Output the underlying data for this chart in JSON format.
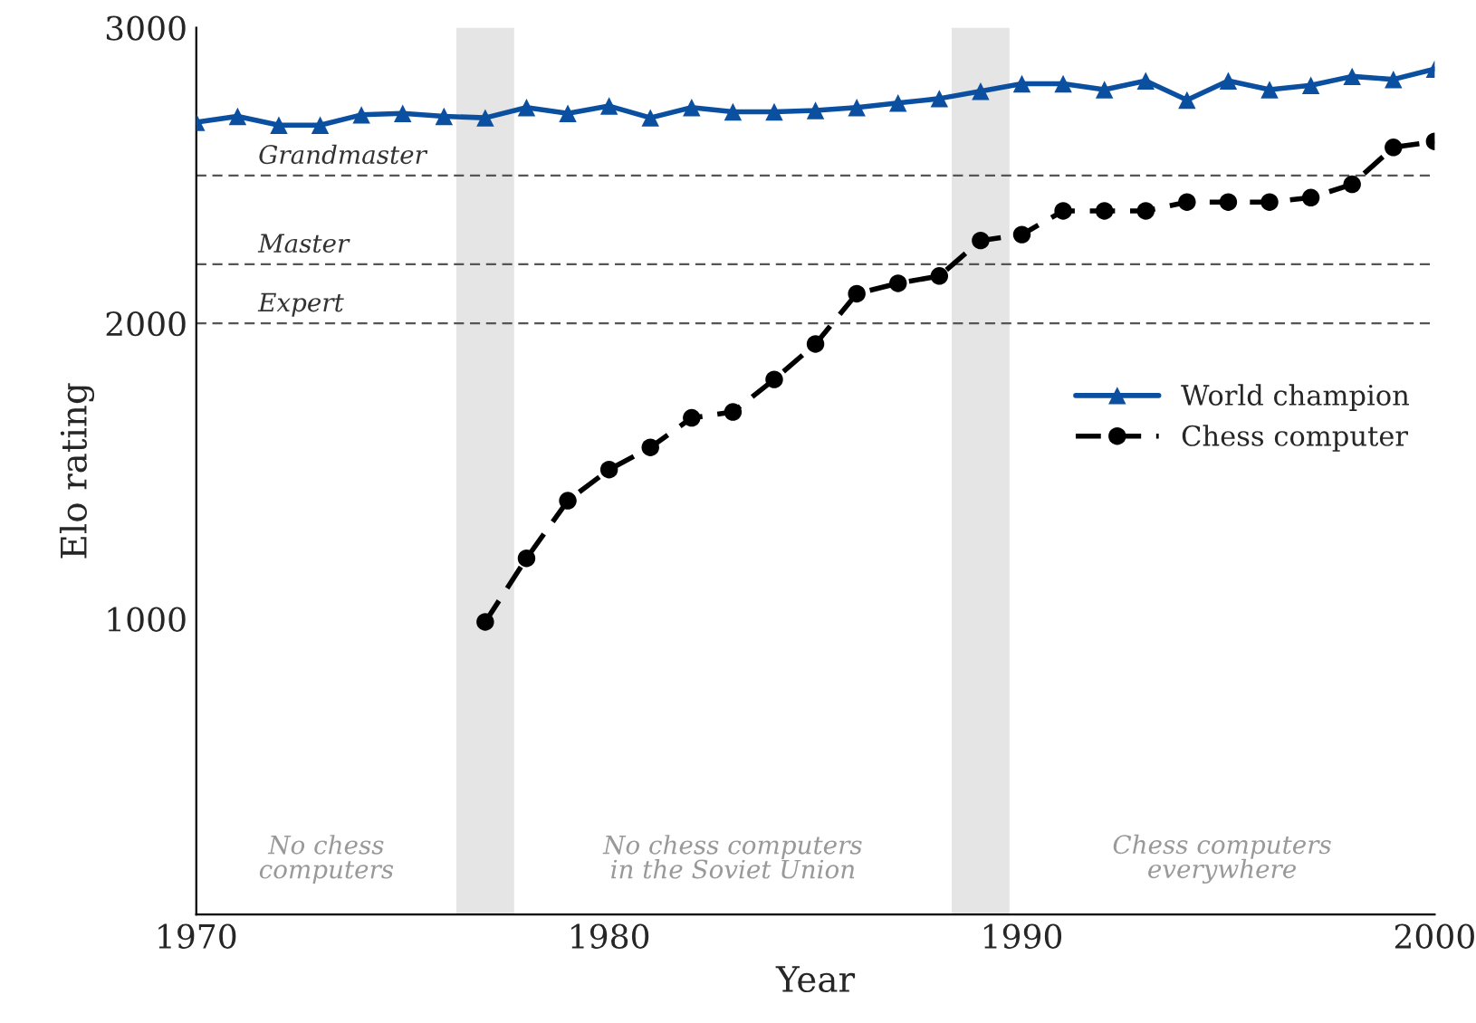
{
  "chart_data": {
    "type": "line",
    "xlabel": "Year",
    "ylabel": "Elo rating",
    "xlim": [
      1970,
      2000
    ],
    "xticks": [
      1970,
      1980,
      1990,
      2000
    ],
    "ylim": [
      0,
      3000
    ],
    "yticks": [
      1000,
      2000,
      3000
    ],
    "x": [
      1970,
      1971,
      1972,
      1973,
      1974,
      1975,
      1976,
      1977,
      1978,
      1979,
      1980,
      1981,
      1982,
      1983,
      1984,
      1985,
      1986,
      1987,
      1988,
      1989,
      1990,
      1991,
      1992,
      1993,
      1994,
      1995,
      1996,
      1997,
      1998,
      1999,
      2000
    ],
    "series": [
      {
        "name": "World champion",
        "color": "#0b4fa0",
        "marker": "triangle",
        "line_style": "solid",
        "values": [
          2680,
          2700,
          2670,
          2670,
          2705,
          2710,
          2700,
          2695,
          2730,
          2710,
          2735,
          2695,
          2730,
          2715,
          2715,
          2720,
          2730,
          2745,
          2760,
          2785,
          2810,
          2810,
          2790,
          2820,
          2755,
          2820,
          2790,
          2805,
          2835,
          2825,
          2860
        ]
      },
      {
        "name": "Chess computer",
        "color": "#000000",
        "marker": "circle",
        "line_style": "dashed",
        "values": [
          null,
          null,
          null,
          null,
          null,
          null,
          null,
          990,
          1205,
          1400,
          1505,
          1580,
          1680,
          1700,
          1810,
          1930,
          2100,
          2135,
          2160,
          2280,
          2300,
          2380,
          2380,
          2380,
          2410,
          2410,
          2410,
          2425,
          2470,
          2595,
          2615
        ]
      }
    ],
    "ref_lines": [
      {
        "axis": "y",
        "value": 2500,
        "label": "Grandmaster",
        "color": "#555555",
        "line_style": "dashed"
      },
      {
        "axis": "y",
        "value": 2200,
        "label": "Master",
        "color": "#555555",
        "line_style": "dashed"
      },
      {
        "axis": "y",
        "value": 2000,
        "label": "Expert",
        "color": "#555555",
        "line_style": "dashed"
      }
    ],
    "bands": [
      {
        "axis": "x",
        "from": 1976.3,
        "to": 1977.7,
        "color": "#e5e5e5"
      },
      {
        "axis": "x",
        "from": 1988.3,
        "to": 1989.7,
        "color": "#e5e5e5"
      }
    ],
    "annotations": [
      "No chess\ncomputers",
      "No chess computers\nin the Soviet Union",
      "Chess computers\neverywhere"
    ],
    "legend": "right",
    "grid": false
  }
}
